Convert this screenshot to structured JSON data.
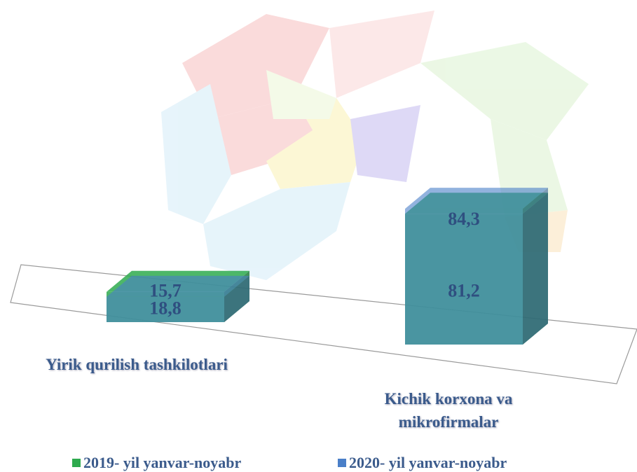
{
  "chart_data": {
    "type": "bar3d",
    "categories": [
      "Yirik qurilish tashkilotlari",
      "Kichik korxona va mikrofirmalar"
    ],
    "series": [
      {
        "name": "2019- yil yanvar-noyabr",
        "color": "#2eaa4e",
        "values": [
          18.8,
          81.2
        ],
        "value_labels": [
          "18,8",
          "81,2"
        ]
      },
      {
        "name": "2020- yil yanvar-noyabr",
        "color": "#4a7fc8",
        "values": [
          15.7,
          84.3
        ],
        "value_labels": [
          "15,7",
          "84,3"
        ]
      }
    ],
    "legend": "bottom"
  }
}
